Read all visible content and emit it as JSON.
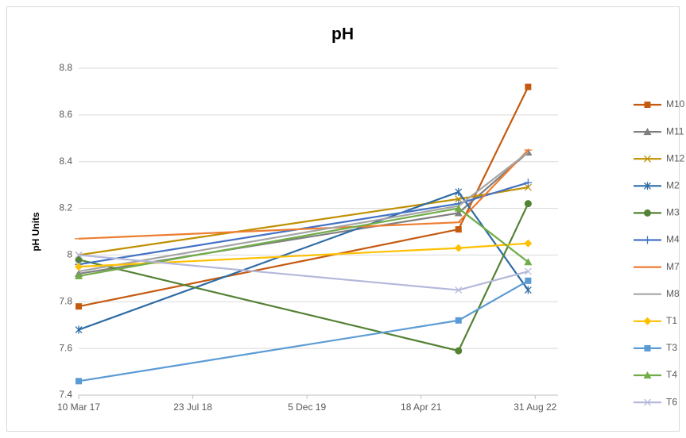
{
  "chart_data": {
    "type": "line",
    "title": "pH",
    "y_label": "pH Units",
    "x": [
      42804,
      44468,
      44773
    ],
    "xlim": [
      42804,
      44904
    ],
    "xticks": [
      {
        "value": 42804,
        "label": "10 Mar 17"
      },
      {
        "value": 43304,
        "label": "23 Jul 18"
      },
      {
        "value": 43804,
        "label": "5 Dec 19"
      },
      {
        "value": 44304,
        "label": "18 Apr 21"
      },
      {
        "value": 44804,
        "label": "31 Aug 22"
      }
    ],
    "ylim": [
      7.4,
      8.8
    ],
    "yticks": [
      7.4,
      7.6,
      7.8,
      8,
      8.2,
      8.4,
      8.6,
      8.8
    ],
    "grid": true,
    "legend": "right",
    "series": [
      {
        "name": "M10",
        "color": "#c55a11",
        "marker": "square",
        "values": [
          7.78,
          8.11,
          8.72
        ]
      },
      {
        "name": "M11",
        "color": "#7f7f7f",
        "marker": "triangle",
        "values": [
          7.92,
          8.18,
          8.44
        ]
      },
      {
        "name": "M12",
        "color": "#bf9000",
        "marker": "x",
        "values": [
          8.0,
          8.24,
          8.29
        ]
      },
      {
        "name": "M2",
        "color": "#2e6ca4",
        "marker": "asterisk",
        "values": [
          7.68,
          8.27,
          7.85
        ]
      },
      {
        "name": "M3",
        "color": "#548235",
        "marker": "circle",
        "values": [
          7.98,
          7.59,
          8.22
        ]
      },
      {
        "name": "M4",
        "color": "#4472c4",
        "marker": "plus",
        "values": [
          7.96,
          8.22,
          8.31
        ]
      },
      {
        "name": "M7",
        "color": "#ed7d31",
        "marker": "dash",
        "values": [
          8.07,
          8.14,
          8.45
        ]
      },
      {
        "name": "M8",
        "color": "#a5a5a5",
        "marker": "none",
        "values": [
          7.93,
          8.21,
          8.44
        ]
      },
      {
        "name": "T1",
        "color": "#ffc000",
        "marker": "diamond",
        "values": [
          7.95,
          8.03,
          8.05
        ]
      },
      {
        "name": "T3",
        "color": "#5b9bd5",
        "marker": "square",
        "values": [
          7.46,
          7.72,
          7.89
        ]
      },
      {
        "name": "T4",
        "color": "#70ad47",
        "marker": "triangle",
        "values": [
          7.91,
          8.2,
          7.97
        ]
      },
      {
        "name": "T6",
        "color": "#b4b8dc",
        "marker": "x",
        "values": [
          8.0,
          7.85,
          7.93
        ]
      }
    ]
  }
}
